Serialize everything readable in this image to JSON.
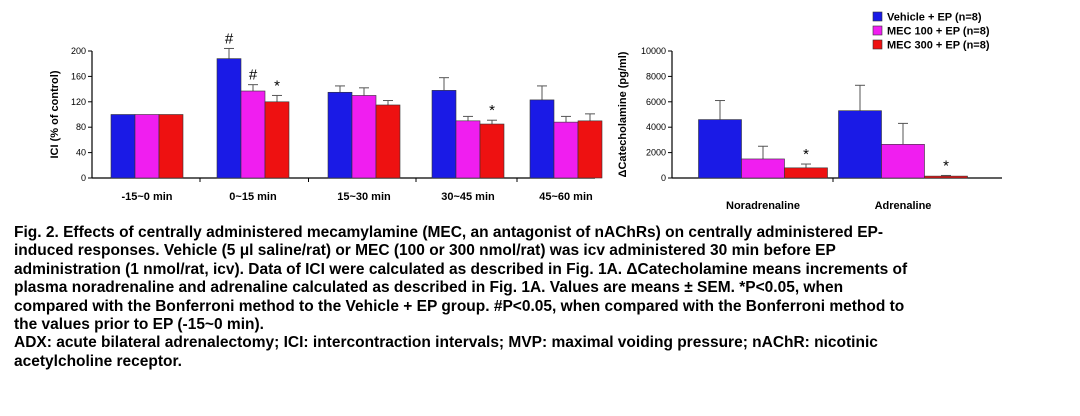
{
  "chart_data": [
    {
      "type": "bar",
      "ylabel": "ICI (% of control)",
      "ylim": [
        0,
        200
      ],
      "yticks": [
        0,
        40,
        80,
        120,
        160,
        200
      ],
      "categories": [
        "-15~0 min",
        "0~15 min",
        "15~30 min",
        "30~45 min",
        "45~60 min"
      ],
      "series": [
        {
          "name": "Vehicle + EP (n=8)",
          "color": "#1a1ae6",
          "values": [
            100,
            188,
            135,
            138,
            123
          ],
          "errors": [
            0,
            16,
            10,
            20,
            22
          ]
        },
        {
          "name": "MEC 100 + EP (n=8)",
          "color": "#f01ef0",
          "values": [
            100,
            137,
            130,
            90,
            88
          ],
          "errors": [
            0,
            10,
            12,
            7,
            9
          ]
        },
        {
          "name": "MEC 300 + EP (n=8)",
          "color": "#ee1111",
          "values": [
            100,
            120,
            115,
            85,
            90
          ],
          "errors": [
            0,
            10,
            7,
            6,
            11
          ]
        }
      ],
      "annotations": [
        {
          "category": 1,
          "series": 0,
          "text": "#"
        },
        {
          "category": 1,
          "series": 1,
          "text": "#"
        },
        {
          "category": 1,
          "series": 2,
          "text": "*"
        },
        {
          "category": 3,
          "series": 2,
          "text": "*"
        }
      ]
    },
    {
      "type": "bar",
      "ylabel": "ΔCatecholamine (pg/ml)",
      "ylim": [
        0,
        10000
      ],
      "yticks": [
        0,
        2000,
        4000,
        6000,
        8000,
        10000
      ],
      "categories": [
        "Noradrenaline",
        "Adrenaline"
      ],
      "series": [
        {
          "name": "Vehicle + EP (n=8)",
          "color": "#1a1ae6",
          "values": [
            4600,
            5300
          ],
          "errors": [
            1500,
            2000
          ]
        },
        {
          "name": "MEC 100 + EP (n=8)",
          "color": "#f01ef0",
          "values": [
            1500,
            2650
          ],
          "errors": [
            1000,
            1650
          ]
        },
        {
          "name": "MEC 300 + EP (n=8)",
          "color": "#ee1111",
          "values": [
            800,
            150
          ],
          "errors": [
            300,
            50
          ]
        }
      ],
      "annotations": [
        {
          "category": 0,
          "series": 2,
          "text": "*"
        },
        {
          "category": 1,
          "series": 2,
          "text": "*"
        }
      ]
    }
  ],
  "legend": [
    "Vehicle + EP (n=8)",
    "MEC 100 + EP (n=8)",
    "MEC 300 + EP (n=8)"
  ],
  "caption": {
    "line1": "Fig. 2. Effects of centrally administered mecamylamine (MEC, an antagonist of nAChRs) on centrally administered EP-",
    "line2": "induced responses.  Vehicle (5 μl saline/rat) or MEC (100 or 300 nmol/rat) was icv administered 30 min before EP",
    "line3": "administration (1 nmol/rat, icv).  Data of ICI were calculated as described in Fig. 1A.  ΔCatecholamine means increments of",
    "line4": "plasma noradrenaline and adrenaline calculated as described in Fig. 1A.  Values are means ± SEM.  *P<0.05, when",
    "line5": "compared with the Bonferroni method to the Vehicle + EP group.  #P<0.05, when compared with the Bonferroni method to",
    "line6": "the values prior to EP (-15~0 min).",
    "line7": "ADX: acute bilateral adrenalectomy; ICI: intercontraction intervals; MVP: maximal voiding pressure; nAChR: nicotinic",
    "line8": "acetylcholine receptor."
  }
}
